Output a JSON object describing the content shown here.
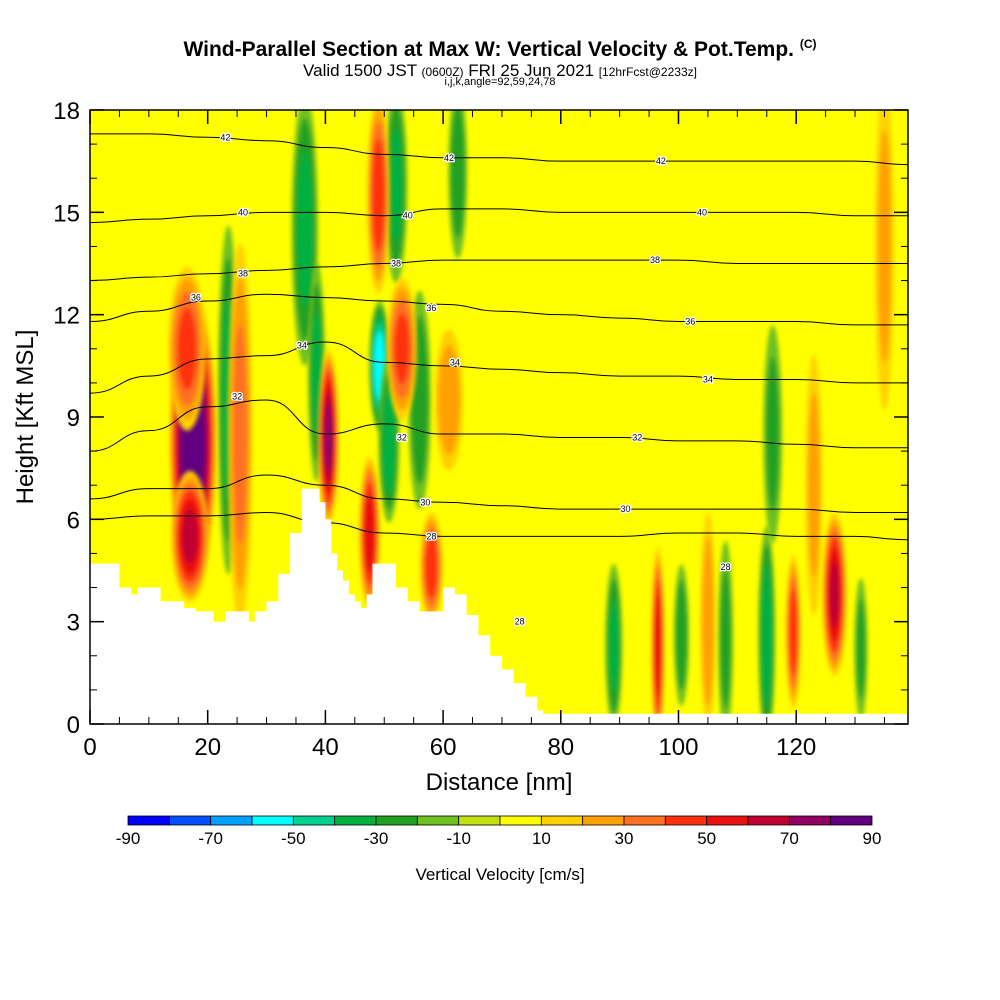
{
  "header": {
    "title": "Wind-Parallel Section at Max W: Vertical Velocity & Pot.Temp.",
    "title_mark": "(C)",
    "valid_prefix": "Valid 1500 JST",
    "valid_utc": "(0600Z)",
    "valid_date": "FRI 25 Jun 2021",
    "forecast": "[12hrFcst@2233z]",
    "params": "i,j,k,angle=92,59,24,78"
  },
  "chart_data": {
    "type": "heatmap",
    "xlabel": "Distance [nm]",
    "ylabel": "Height [Kft MSL]",
    "xlim": [
      0,
      139
    ],
    "ylim": [
      0,
      18
    ],
    "x_ticks": [
      0,
      20,
      40,
      60,
      80,
      100,
      120
    ],
    "y_ticks": [
      0,
      3,
      6,
      9,
      12,
      15,
      18
    ],
    "colorbar": {
      "label": "Vertical Velocity [cm/s]",
      "levels": [
        -90,
        -80,
        -70,
        -60,
        -50,
        -40,
        -30,
        -20,
        -10,
        0,
        10,
        20,
        30,
        40,
        50,
        60,
        70,
        80,
        90
      ],
      "tick_labels": [
        "-90",
        "-70",
        "-50",
        "-30",
        "-10",
        "10",
        "30",
        "50",
        "70",
        "90"
      ],
      "colors": [
        "#0000ff",
        "#0050ff",
        "#00a0ff",
        "#00ffff",
        "#00d090",
        "#00b040",
        "#20a020",
        "#70c020",
        "#c0e010",
        "#ffff00",
        "#ffd000",
        "#ffa000",
        "#ff7020",
        "#ff3010",
        "#e81010",
        "#c00030",
        "#900060",
        "#600080"
      ]
    },
    "background_w": 0,
    "terrain": [
      [
        0,
        4.7
      ],
      [
        4,
        4.7
      ],
      [
        5,
        4.0
      ],
      [
        7,
        3.8
      ],
      [
        8,
        4.0
      ],
      [
        10,
        4.0
      ],
      [
        12,
        3.6
      ],
      [
        14,
        3.6
      ],
      [
        16,
        3.4
      ],
      [
        18,
        3.3
      ],
      [
        20,
        3.3
      ],
      [
        21,
        3.0
      ],
      [
        23,
        3.3
      ],
      [
        26,
        3.3
      ],
      [
        27,
        3.0
      ],
      [
        28,
        3.3
      ],
      [
        30,
        3.6
      ],
      [
        32,
        4.4
      ],
      [
        34,
        5.6
      ],
      [
        36,
        6.9
      ],
      [
        38,
        6.9
      ],
      [
        39,
        6.5
      ],
      [
        40,
        6.0
      ],
      [
        41,
        5.0
      ],
      [
        42,
        4.5
      ],
      [
        43,
        4.2
      ],
      [
        44,
        3.8
      ],
      [
        45,
        3.6
      ],
      [
        46,
        3.4
      ],
      [
        47,
        3.8
      ],
      [
        48,
        4.7
      ],
      [
        50,
        4.7
      ],
      [
        52,
        4.0
      ],
      [
        54,
        3.6
      ],
      [
        56,
        3.3
      ],
      [
        58,
        3.3
      ],
      [
        60,
        4.0
      ],
      [
        62,
        3.8
      ],
      [
        64,
        3.2
      ],
      [
        66,
        2.6
      ],
      [
        68,
        2.0
      ],
      [
        70,
        1.6
      ],
      [
        72,
        1.2
      ],
      [
        74,
        0.8
      ],
      [
        76,
        0.4
      ],
      [
        77,
        0.3
      ],
      [
        139,
        0.3
      ]
    ],
    "updrafts": [
      {
        "x": 17.5,
        "y": 8.3,
        "sx": 2.5,
        "sy": 2.6,
        "w": 95
      },
      {
        "x": 17.0,
        "y": 5.5,
        "sx": 2.0,
        "sy": 1.2,
        "w": 60
      },
      {
        "x": 16.5,
        "y": 11.0,
        "sx": 2.0,
        "sy": 1.5,
        "w": 40
      },
      {
        "x": 25.5,
        "y": 8.5,
        "sx": 1.3,
        "sy": 3.5,
        "w": 30
      },
      {
        "x": 40.5,
        "y": 8.4,
        "sx": 1.1,
        "sy": 1.6,
        "w": 70
      },
      {
        "x": 47.5,
        "y": 5.6,
        "sx": 1.1,
        "sy": 1.4,
        "w": 55
      },
      {
        "x": 49.0,
        "y": 15.5,
        "sx": 1.2,
        "sy": 1.8,
        "w": 45
      },
      {
        "x": 53.0,
        "y": 11.0,
        "sx": 1.6,
        "sy": 1.3,
        "w": 40
      },
      {
        "x": 58.0,
        "y": 4.6,
        "sx": 1.2,
        "sy": 1.0,
        "w": 45
      },
      {
        "x": 61.0,
        "y": 9.5,
        "sx": 1.5,
        "sy": 1.3,
        "w": 25
      },
      {
        "x": 96.5,
        "y": 2.3,
        "sx": 0.7,
        "sy": 1.8,
        "w": 55
      },
      {
        "x": 105.0,
        "y": 3.0,
        "sx": 0.8,
        "sy": 2.0,
        "w": 25
      },
      {
        "x": 119.5,
        "y": 2.7,
        "sx": 0.8,
        "sy": 1.4,
        "w": 45
      },
      {
        "x": 126.5,
        "y": 3.8,
        "sx": 1.3,
        "sy": 1.5,
        "w": 60
      },
      {
        "x": 123.0,
        "y": 7.0,
        "sx": 0.9,
        "sy": 2.4,
        "w": 20
      },
      {
        "x": 135.0,
        "y": 14.0,
        "sx": 1.0,
        "sy": 3.0,
        "w": 20
      }
    ],
    "downdrafts": [
      {
        "x": 23.5,
        "y": 9.5,
        "sx": 1.1,
        "sy": 3.2,
        "w": -30
      },
      {
        "x": 36.5,
        "y": 14.5,
        "sx": 1.4,
        "sy": 2.5,
        "w": -30
      },
      {
        "x": 38.5,
        "y": 10.3,
        "sx": 0.9,
        "sy": 2.0,
        "w": -30
      },
      {
        "x": 49.2,
        "y": 10.5,
        "sx": 1.1,
        "sy": 1.2,
        "w": -55
      },
      {
        "x": 50.8,
        "y": 8.3,
        "sx": 1.1,
        "sy": 1.5,
        "w": -35
      },
      {
        "x": 52.0,
        "y": 15.8,
        "sx": 1.2,
        "sy": 1.8,
        "w": -30
      },
      {
        "x": 56.0,
        "y": 9.5,
        "sx": 1.2,
        "sy": 2.0,
        "w": -25
      },
      {
        "x": 62.5,
        "y": 16.2,
        "sx": 1.0,
        "sy": 1.6,
        "w": -25
      },
      {
        "x": 89.0,
        "y": 2.3,
        "sx": 0.9,
        "sy": 1.5,
        "w": -30
      },
      {
        "x": 100.5,
        "y": 2.6,
        "sx": 0.8,
        "sy": 1.3,
        "w": -25
      },
      {
        "x": 108.0,
        "y": 2.5,
        "sx": 0.8,
        "sy": 1.8,
        "w": -20
      },
      {
        "x": 115.0,
        "y": 2.6,
        "sx": 0.9,
        "sy": 2.0,
        "w": -35
      },
      {
        "x": 116.0,
        "y": 8.5,
        "sx": 1.0,
        "sy": 2.0,
        "w": -20
      },
      {
        "x": 131.0,
        "y": 2.2,
        "sx": 0.7,
        "sy": 1.3,
        "w": -20
      }
    ],
    "theta_contours": [
      {
        "label": "28",
        "label_at": [
          [
            58,
            5.5
          ],
          [
            73,
            3.0
          ],
          [
            108,
            4.6
          ]
        ],
        "y": [
          6.0,
          6.1,
          6.1,
          6.2,
          5.9,
          5.6,
          5.5,
          5.5,
          5.5,
          5.5,
          5.6,
          5.6,
          5.5,
          5.5,
          5.4
        ]
      },
      {
        "label": "30",
        "label_at": [
          [
            57,
            6.5
          ],
          [
            91,
            6.3
          ]
        ],
        "y": [
          6.6,
          6.9,
          6.9,
          7.3,
          7.0,
          6.6,
          6.5,
          6.4,
          6.3,
          6.3,
          6.3,
          6.3,
          6.3,
          6.2,
          6.2
        ]
      },
      {
        "label": "32",
        "label_at": [
          [
            25,
            9.6
          ],
          [
            53,
            8.4
          ],
          [
            93,
            8.4
          ]
        ],
        "y": [
          8.0,
          8.6,
          9.3,
          9.5,
          8.5,
          8.8,
          8.5,
          8.5,
          8.4,
          8.4,
          8.3,
          8.3,
          8.2,
          8.1,
          8.1
        ]
      },
      {
        "label": "34",
        "label_at": [
          [
            36,
            11.1
          ],
          [
            62,
            10.6
          ],
          [
            105,
            10.1
          ]
        ],
        "y": [
          9.7,
          10.2,
          10.7,
          10.8,
          11.2,
          10.6,
          10.5,
          10.4,
          10.3,
          10.2,
          10.2,
          10.1,
          10.1,
          10.0,
          10.0
        ]
      },
      {
        "label": "36",
        "label_at": [
          [
            18,
            12.5
          ],
          [
            58,
            12.2
          ],
          [
            102,
            11.8
          ]
        ],
        "y": [
          11.8,
          12.1,
          12.4,
          12.6,
          12.5,
          12.4,
          12.3,
          12.1,
          12.0,
          11.9,
          11.8,
          11.8,
          11.8,
          11.7,
          11.7
        ]
      },
      {
        "label": "38",
        "label_at": [
          [
            26,
            13.2
          ],
          [
            52,
            13.5
          ],
          [
            96,
            13.6
          ]
        ],
        "y": [
          13.0,
          13.1,
          13.2,
          13.3,
          13.4,
          13.5,
          13.6,
          13.6,
          13.6,
          13.6,
          13.6,
          13.5,
          13.5,
          13.5,
          13.5
        ]
      },
      {
        "label": "40",
        "label_at": [
          [
            26,
            15.0
          ],
          [
            54,
            14.9
          ],
          [
            104,
            15.0
          ]
        ],
        "y": [
          14.7,
          14.8,
          14.9,
          15.0,
          15.0,
          14.9,
          15.1,
          15.1,
          15.0,
          15.0,
          15.0,
          15.0,
          15.0,
          14.9,
          14.9
        ]
      },
      {
        "label": "42",
        "label_at": [
          [
            23,
            17.2
          ],
          [
            61,
            16.6
          ],
          [
            97,
            16.5
          ]
        ],
        "y": [
          17.3,
          17.3,
          17.2,
          17.1,
          16.9,
          16.7,
          16.6,
          16.6,
          16.5,
          16.5,
          16.5,
          16.5,
          16.5,
          16.5,
          16.4
        ]
      }
    ],
    "theta_x": [
      0,
      10,
      20,
      30,
      40,
      50,
      60,
      70,
      80,
      90,
      100,
      110,
      120,
      130,
      139
    ]
  }
}
